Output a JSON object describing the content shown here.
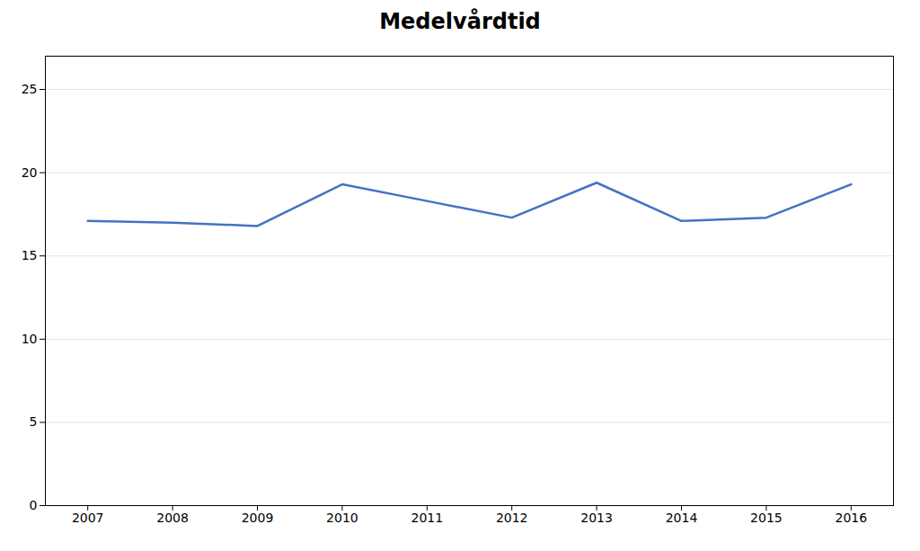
{
  "chart_data": {
    "type": "line",
    "title": "Medelvårdtid",
    "x": [
      2007,
      2008,
      2009,
      2010,
      2011,
      2012,
      2013,
      2014,
      2015,
      2016
    ],
    "values": [
      17.1,
      17.0,
      16.8,
      19.3,
      18.3,
      17.3,
      19.4,
      17.1,
      17.3,
      19.3
    ],
    "color": "#4472C4",
    "xlim": [
      2006.5,
      2016.5
    ],
    "xticks": [
      2007,
      2008,
      2009,
      2010,
      2011,
      2012,
      2013,
      2014,
      2015,
      2016
    ],
    "ylim": [
      0,
      27
    ],
    "yticks": [
      0,
      5,
      10,
      15,
      20,
      25
    ],
    "grid": true
  }
}
